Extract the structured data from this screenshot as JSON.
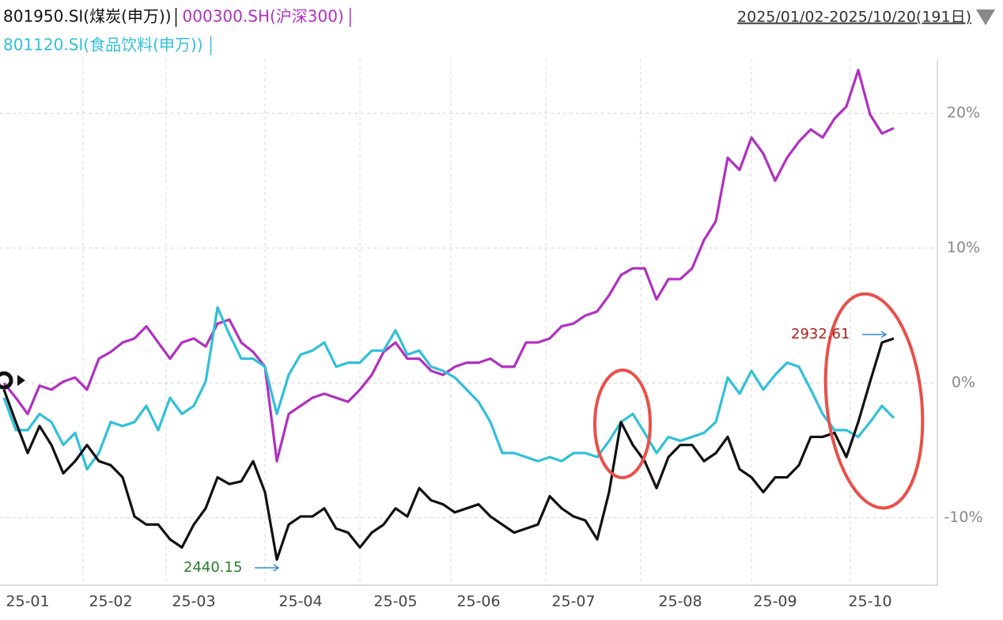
{
  "chart_data": {
    "type": "line",
    "legend_titles": [
      "801950.SI(煤炭(申万))",
      "000300.SH(沪深300)",
      "801120.SI(食品饮料(申万))"
    ],
    "date_range": "2025/01/02-2025/10/20(191日)",
    "categories": [
      null,
      null,
      "25-01",
      null,
      null,
      null,
      null,
      null,
      null,
      "25-02",
      null,
      null,
      null,
      null,
      null,
      null,
      "25-03",
      null,
      null,
      null,
      null,
      null,
      null,
      null,
      null,
      "25-04",
      null,
      null,
      null,
      null,
      null,
      null,
      null,
      "25-05",
      null,
      null,
      null,
      null,
      null,
      null,
      "25-06",
      null,
      null,
      null,
      null,
      null,
      null,
      null,
      "25-07",
      null,
      null,
      null,
      null,
      null,
      null,
      null,
      null,
      "25-08",
      null,
      null,
      null,
      null,
      null,
      null,
      null,
      "25-09",
      null,
      null,
      null,
      null,
      null,
      null,
      null,
      "25-10",
      null,
      null
    ],
    "series": [
      {
        "name": "801950.SI(煤炭(申万))",
        "color": "#111111",
        "values": [
          -0.5,
          -2.9,
          -5.2,
          -3.2,
          -4.6,
          -6.7,
          -5.8,
          -4.6,
          -5.8,
          -6.1,
          -7.0,
          -9.9,
          -10.5,
          -10.5,
          -11.6,
          -12.2,
          -10.5,
          -9.3,
          -7.0,
          -7.5,
          -7.3,
          -5.8,
          -8.1,
          -13.1,
          -10.5,
          -9.9,
          -9.9,
          -9.3,
          -10.8,
          -11.1,
          -12.2,
          -11.1,
          -10.5,
          -9.3,
          -9.9,
          -7.8,
          -8.7,
          -9.0,
          -9.6,
          -9.3,
          -9.0,
          -9.9,
          -10.5,
          -11.1,
          -10.8,
          -10.5,
          -8.4,
          -9.3,
          -9.9,
          -10.2,
          -11.6,
          -8.1,
          -2.9,
          -4.6,
          -5.8,
          -7.8,
          -5.5,
          -4.6,
          -4.6,
          -5.8,
          -5.2,
          -4.0,
          -6.4,
          -7.0,
          -8.1,
          -7.0,
          -7.0,
          -6.1,
          -4.0,
          -4.0,
          -3.7,
          -5.5,
          -2.9,
          0.1,
          3.0,
          3.3
        ]
      },
      {
        "name": "000300.SH(沪深300)",
        "color": "#b030c0",
        "values": [
          0,
          -1.1,
          -2.3,
          -0.2,
          -0.5,
          0.1,
          0.4,
          -0.5,
          1.8,
          2.3,
          3.0,
          3.3,
          4.2,
          3.0,
          1.8,
          3.0,
          3.3,
          2.7,
          4.4,
          4.7,
          3.0,
          2.3,
          1.2,
          -5.8,
          -2.3,
          -1.7,
          -1.1,
          -0.8,
          -1.1,
          -1.4,
          -0.5,
          0.6,
          2.3,
          3.0,
          1.8,
          1.8,
          0.9,
          0.6,
          1.2,
          1.5,
          1.5,
          1.8,
          1.2,
          1.2,
          3.0,
          3.0,
          3.3,
          4.2,
          4.4,
          5.0,
          5.3,
          6.5,
          8.0,
          8.5,
          8.5,
          6.2,
          7.7,
          7.7,
          8.5,
          10.6,
          12.0,
          16.7,
          15.8,
          18.2,
          17.0,
          15.0,
          16.7,
          17.9,
          18.8,
          18.2,
          19.6,
          20.5,
          23.2,
          19.9,
          18.5,
          18.9
        ]
      },
      {
        "name": "801120.SI(食品饮料(申万))",
        "color": "#30c0d8",
        "values": [
          -1.1,
          -3.5,
          -3.5,
          -2.3,
          -2.9,
          -4.6,
          -3.7,
          -6.4,
          -5.2,
          -2.9,
          -3.2,
          -2.9,
          -1.7,
          -3.5,
          -1.1,
          -2.3,
          -1.7,
          0.1,
          5.6,
          3.6,
          1.8,
          1.8,
          1.2,
          -2.3,
          0.6,
          2.1,
          2.4,
          3.0,
          1.2,
          1.5,
          1.5,
          2.4,
          2.4,
          3.9,
          2.1,
          2.4,
          1.2,
          0.9,
          0.4,
          -0.5,
          -1.4,
          -2.9,
          -5.2,
          -5.2,
          -5.5,
          -5.8,
          -5.5,
          -5.8,
          -5.2,
          -5.2,
          -5.5,
          -4.3,
          -2.9,
          -2.3,
          -3.7,
          -5.2,
          -4.0,
          -4.3,
          -4.0,
          -3.7,
          -2.9,
          0.4,
          -0.8,
          0.9,
          -0.5,
          0.6,
          1.5,
          1.2,
          -0.5,
          -2.3,
          -3.5,
          -3.5,
          -4.0,
          -2.9,
          -1.7,
          -2.6
        ]
      }
    ],
    "annotations": [
      "2440.15",
      "2932.61"
    ],
    "ylim": [
      -15,
      24
    ],
    "yticks": [
      {
        "value": -10,
        "label": "-10%"
      },
      {
        "value": 0,
        "label": "0%"
      },
      {
        "value": 10,
        "label": "10%"
      },
      {
        "value": 20,
        "label": "20%"
      }
    ],
    "grid": true
  }
}
